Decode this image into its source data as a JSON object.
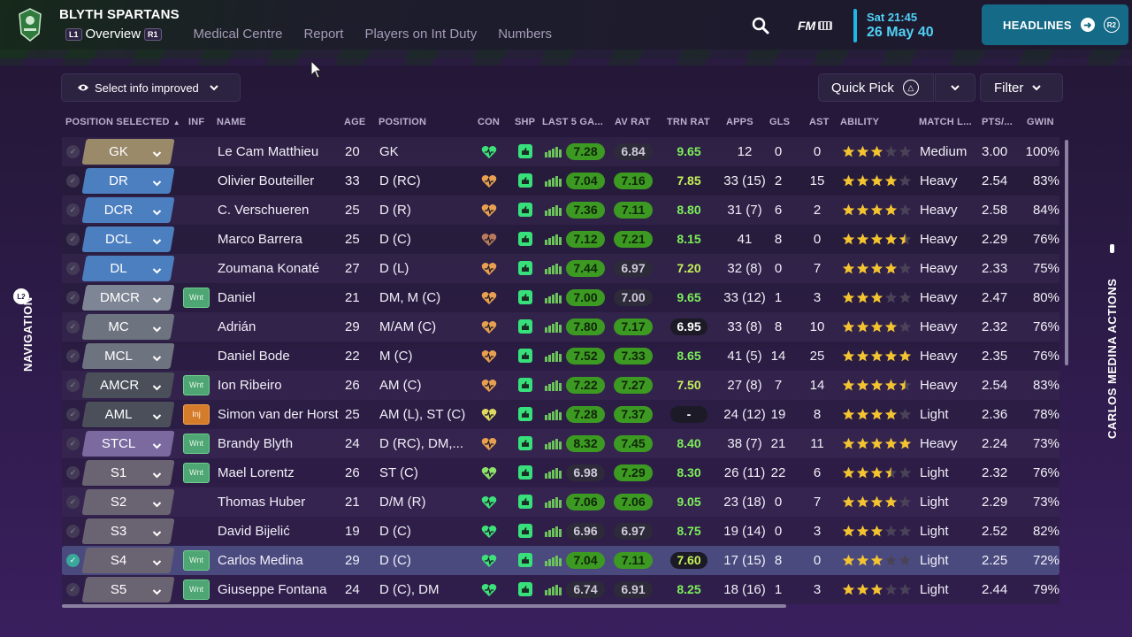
{
  "header": {
    "club_name": "BLYTH SPARTANS",
    "tabs": [
      {
        "label": "Overview",
        "key": "L1",
        "key_after": "R1",
        "active": true
      },
      {
        "label": "Medical Centre"
      },
      {
        "label": "Report"
      },
      {
        "label": "Players on Int Duty"
      },
      {
        "label": "Numbers"
      }
    ],
    "fm_label": "FM",
    "date_time": "Sat 21:45",
    "date_day": "26 May 40",
    "headlines_label": "HEADLINES",
    "headlines_key": "R2",
    "accent": "#1eb7e8",
    "headlines_bg": "#156a87"
  },
  "toolbar": {
    "select_info_label": "Select info improved",
    "quick_pick_label": "Quick Pick",
    "filter_label": "Filter"
  },
  "side": {
    "left_label": "NAVIGATION",
    "left_key": "L2",
    "right_label": "CARLOS MEDINA ACTIONS"
  },
  "columns": [
    "POSITION SELECTED",
    "INF",
    "NAME",
    "AGE",
    "POSITION",
    "CON",
    "SHP",
    "LAST 5 GA...",
    "AV RAT",
    "TRN RAT",
    "APPS",
    "GLS",
    "AST",
    "ABILITY",
    "MATCH L...",
    "PTS/...",
    "GWIN"
  ],
  "players": [
    {
      "sel": "GK",
      "tag": "gk",
      "inf": "",
      "name": "Le Cam Matthieu",
      "age": "20",
      "pos": "GK",
      "con": "green",
      "last5": "7.28",
      "l5c": "green",
      "av": "6.84",
      "avc": "dark",
      "trn": "9.65",
      "trnc": "green",
      "apps": "12",
      "gls": "0",
      "ast": "0",
      "stars": 3,
      "ml": "Medium",
      "pts": "3.00",
      "gwin": "100%",
      "checked": false
    },
    {
      "sel": "DR",
      "tag": "def",
      "inf": "",
      "name": "Olivier Bouteiller",
      "age": "33",
      "pos": "D (RC)",
      "con": "orange",
      "last5": "7.04",
      "l5c": "green",
      "av": "7.16",
      "avc": "green",
      "trn": "7.85",
      "trnc": "lime",
      "apps": "33 (15)",
      "gls": "2",
      "ast": "15",
      "stars": 4,
      "ml": "Heavy",
      "pts": "2.54",
      "gwin": "83%",
      "checked": false
    },
    {
      "sel": "DCR",
      "tag": "def",
      "inf": "",
      "name": "C. Verschueren",
      "age": "25",
      "pos": "D (R)",
      "con": "orange",
      "last5": "7.36",
      "l5c": "green",
      "av": "7.11",
      "avc": "green",
      "trn": "8.80",
      "trnc": "green",
      "apps": "31 (7)",
      "gls": "6",
      "ast": "2",
      "stars": 4,
      "ml": "Heavy",
      "pts": "2.58",
      "gwin": "84%",
      "checked": false
    },
    {
      "sel": "DCL",
      "tag": "def",
      "inf": "",
      "name": "Marco Barrera",
      "age": "25",
      "pos": "D (C)",
      "con": "brown",
      "last5": "7.12",
      "l5c": "green",
      "av": "7.21",
      "avc": "green",
      "trn": "8.15",
      "trnc": "green",
      "apps": "41",
      "gls": "8",
      "ast": "0",
      "stars": 4.5,
      "ml": "Heavy",
      "pts": "2.29",
      "gwin": "76%",
      "checked": false
    },
    {
      "sel": "DL",
      "tag": "def",
      "inf": "",
      "name": "Zoumana Konaté",
      "age": "27",
      "pos": "D (L)",
      "con": "orange",
      "last5": "7.44",
      "l5c": "green",
      "av": "6.97",
      "avc": "dark",
      "trn": "7.20",
      "trnc": "lime",
      "apps": "32 (8)",
      "gls": "0",
      "ast": "7",
      "stars": 4,
      "ml": "Heavy",
      "pts": "2.33",
      "gwin": "75%",
      "checked": false
    },
    {
      "sel": "DMCR",
      "tag": "dm",
      "inf": "Wnt",
      "name": "Daniel",
      "age": "21",
      "pos": "DM, M (C)",
      "con": "orange",
      "last5": "7.00",
      "l5c": "green",
      "av": "7.00",
      "avc": "dark",
      "trn": "9.65",
      "trnc": "green",
      "apps": "33 (12)",
      "gls": "1",
      "ast": "3",
      "stars": 3,
      "ml": "Heavy",
      "pts": "2.47",
      "gwin": "80%",
      "checked": false
    },
    {
      "sel": "MC",
      "tag": "mid",
      "inf": "",
      "name": "Adrián",
      "age": "29",
      "pos": "M/AM (C)",
      "con": "orange",
      "last5": "7.80",
      "l5c": "green",
      "av": "7.17",
      "avc": "green",
      "trn": "6.95",
      "trnc": "white",
      "apps": "33 (8)",
      "gls": "8",
      "ast": "10",
      "stars": 4,
      "ml": "Heavy",
      "pts": "2.32",
      "gwin": "76%",
      "checked": false
    },
    {
      "sel": "MCL",
      "tag": "mid",
      "inf": "",
      "name": "Daniel Bode",
      "age": "22",
      "pos": "M (C)",
      "con": "orange",
      "last5": "7.52",
      "l5c": "green",
      "av": "7.33",
      "avc": "green",
      "trn": "8.65",
      "trnc": "green",
      "apps": "41 (5)",
      "gls": "14",
      "ast": "25",
      "stars": 5,
      "ml": "Heavy",
      "pts": "2.35",
      "gwin": "76%",
      "checked": false
    },
    {
      "sel": "AMCR",
      "tag": "am",
      "inf": "Wnt",
      "name": "Ion Ribeiro",
      "age": "26",
      "pos": "AM (C)",
      "con": "orange",
      "last5": "7.22",
      "l5c": "green",
      "av": "7.27",
      "avc": "green",
      "trn": "7.50",
      "trnc": "lime",
      "apps": "27 (8)",
      "gls": "7",
      "ast": "14",
      "stars": 4.5,
      "ml": "Heavy",
      "pts": "2.54",
      "gwin": "83%",
      "checked": false
    },
    {
      "sel": "AML",
      "tag": "am",
      "inf": "Inj",
      "name": "Simon van der Horst",
      "age": "25",
      "pos": "AM (L), ST (C)",
      "con": "yellow",
      "last5": "7.28",
      "l5c": "green",
      "av": "7.37",
      "avc": "green",
      "trn": "-",
      "trnc": "white",
      "apps": "24 (12)",
      "gls": "19",
      "ast": "8",
      "stars": 4,
      "ml": "Light",
      "pts": "2.36",
      "gwin": "78%",
      "checked": false
    },
    {
      "sel": "STCL",
      "tag": "st",
      "inf": "Wnt",
      "name": "Brandy Blyth",
      "age": "24",
      "pos": "D (RC), DM,...",
      "con": "orange",
      "last5": "8.32",
      "l5c": "green",
      "av": "7.45",
      "avc": "green",
      "trn": "8.40",
      "trnc": "green",
      "apps": "38 (7)",
      "gls": "21",
      "ast": "11",
      "stars": 5,
      "ml": "Heavy",
      "pts": "2.24",
      "gwin": "73%",
      "checked": false
    },
    {
      "sel": "S1",
      "tag": "sub",
      "inf": "Wnt",
      "name": "Mael Lorentz",
      "age": "26",
      "pos": "ST (C)",
      "con": "lgreen",
      "last5": "6.98",
      "l5c": "dark",
      "av": "7.29",
      "avc": "green",
      "trn": "8.30",
      "trnc": "green",
      "apps": "26 (11)",
      "gls": "22",
      "ast": "6",
      "stars": 3.5,
      "ml": "Light",
      "pts": "2.32",
      "gwin": "76%",
      "checked": false
    },
    {
      "sel": "S2",
      "tag": "sub",
      "inf": "",
      "name": "Thomas Huber",
      "age": "21",
      "pos": "D/M (R)",
      "con": "green",
      "last5": "7.06",
      "l5c": "green",
      "av": "7.06",
      "avc": "green",
      "trn": "9.05",
      "trnc": "green",
      "apps": "23 (18)",
      "gls": "0",
      "ast": "7",
      "stars": 4,
      "ml": "Light",
      "pts": "2.29",
      "gwin": "73%",
      "checked": false
    },
    {
      "sel": "S3",
      "tag": "sub",
      "inf": "",
      "name": "David Bijelić",
      "age": "19",
      "pos": "D (C)",
      "con": "green",
      "last5": "6.96",
      "l5c": "dark",
      "av": "6.97",
      "avc": "dark",
      "trn": "8.75",
      "trnc": "green",
      "apps": "19 (14)",
      "gls": "0",
      "ast": "3",
      "stars": 3,
      "ml": "Light",
      "pts": "2.52",
      "gwin": "82%",
      "checked": false
    },
    {
      "sel": "S4",
      "tag": "sub",
      "inf": "Wnt",
      "name": "Carlos Medina",
      "age": "29",
      "pos": "D (C)",
      "con": "green",
      "last5": "7.04",
      "l5c": "green",
      "av": "7.11",
      "avc": "green",
      "trn": "7.60",
      "trnc": "lime",
      "apps": "17 (15)",
      "gls": "8",
      "ast": "0",
      "stars": 3,
      "ml": "Light",
      "pts": "2.25",
      "gwin": "72%",
      "checked": true
    },
    {
      "sel": "S5",
      "tag": "sub",
      "inf": "Wnt",
      "name": "Giuseppe Fontana",
      "age": "24",
      "pos": "D (C), DM",
      "con": "green",
      "last5": "6.74",
      "l5c": "dark",
      "av": "6.91",
      "avc": "dark",
      "trn": "8.25",
      "trnc": "green",
      "apps": "18 (16)",
      "gls": "1",
      "ast": "3",
      "stars": 3,
      "ml": "Light",
      "pts": "2.44",
      "gwin": "79%",
      "checked": false
    }
  ],
  "tag_colors": {
    "gk": "#9a8a6a",
    "def": "#4c7fc0",
    "dm": "#7e8594",
    "mid": "#6e7380",
    "am": "#4a4f5a",
    "st": "#7a6aa0",
    "sub": "#6a6472"
  },
  "con_colors": {
    "green": "#3ee07a",
    "lgreen": "#8ee06a",
    "orange": "#e8a050",
    "brown": "#b87a5a",
    "yellow": "#e0d860"
  }
}
